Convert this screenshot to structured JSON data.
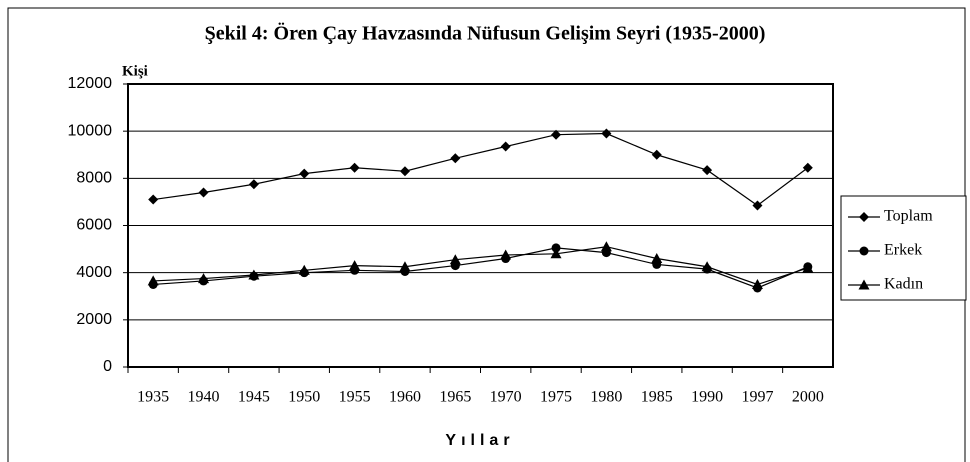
{
  "chart_data": {
    "type": "line",
    "title": "Şekil 4: Ören Çay Havzasında Nüfusun Gelişim Seyri (1935-2000)",
    "y_label": "Kişi",
    "x_label": "Yıllar",
    "categories": [
      "1935",
      "1940",
      "1945",
      "1950",
      "1955",
      "1960",
      "1965",
      "1970",
      "1975",
      "1980",
      "1985",
      "1990",
      "1997",
      "2000"
    ],
    "series": [
      {
        "name": "Toplam",
        "color": "#000000",
        "marker": "diamond",
        "values": [
          7100,
          7400,
          7750,
          8200,
          8450,
          8300,
          8850,
          9350,
          9850,
          9900,
          9000,
          8350,
          6850,
          8450
        ]
      },
      {
        "name": "Erkek",
        "color": "#000000",
        "marker": "circle",
        "values": [
          3500,
          3650,
          3850,
          4000,
          4100,
          4050,
          4300,
          4600,
          5050,
          4850,
          4350,
          4150,
          3350,
          4250
        ]
      },
      {
        "name": "Kadın",
        "color": "#000000",
        "marker": "triangle",
        "values": [
          3650,
          3750,
          3900,
          4100,
          4300,
          4250,
          4550,
          4750,
          4800,
          5100,
          4600,
          4250,
          3500,
          4200
        ]
      }
    ],
    "ylim": [
      0,
      12000
    ],
    "yticks": [
      0,
      2000,
      4000,
      6000,
      8000,
      10000,
      12000
    ],
    "grid": true,
    "legend": "right"
  }
}
